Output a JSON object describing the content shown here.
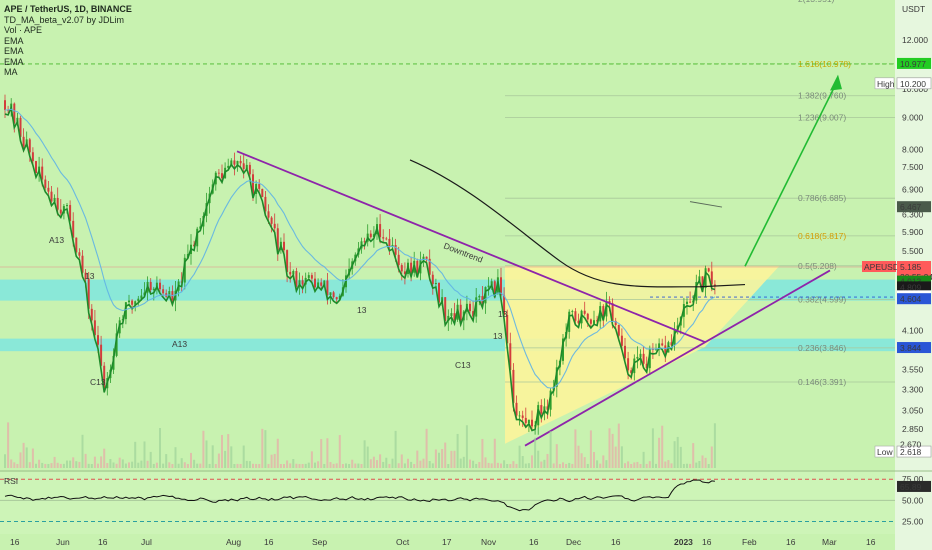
{
  "header": {
    "title": "APE / TetherUS, 1D, BINANCE",
    "indicators": [
      "TD_MA_beta_v2.07 by JDLim",
      "Vol · APE",
      "EMA",
      "EMA",
      "EMA",
      "MA"
    ]
  },
  "colors": {
    "background": "#c8f2b0",
    "candle_up": "#2e9e2e",
    "candle_down": "#d23c3c",
    "trendline": "#8e24aa",
    "projection": "#22bb33",
    "zone": "#7fe6df",
    "triangle": "#fff59a",
    "ma_black": "#1a1a1a",
    "ema_blue": "#5fb3e6",
    "td_green": "#1d8a2a",
    "dashed_red": "#e05050"
  },
  "chart_data": {
    "type": "candlestick",
    "title": "APE / TetherUS, 1D, BINANCE",
    "y_axis": {
      "unit": "USDT",
      "scale": "log",
      "range": [
        2.45,
        13.9
      ],
      "ticks": [
        "12.000",
        "11.000",
        "10.000",
        "9.000",
        "8.000",
        "7.500",
        "6.900",
        "6.300",
        "5.900",
        "5.500",
        "4.100",
        "3.550",
        "3.300",
        "3.050",
        "2.850"
      ]
    },
    "x_axis": {
      "ticks": [
        "16",
        "Jun",
        "16",
        "Jul",
        "Aug",
        "16",
        "Sep",
        "Oct",
        "17",
        "Nov",
        "16",
        "Dec",
        "16",
        "2023",
        "16",
        "Feb",
        "16",
        "Mar",
        "16"
      ]
    },
    "price_labels": [
      {
        "text": "USDT",
        "value": 13.4
      },
      {
        "text": "10.977",
        "value": 10.977,
        "bg": "#22cc22"
      },
      {
        "text": "High",
        "value": 10.2,
        "outline": true
      },
      {
        "text": "10.200",
        "value": 10.2,
        "outline": true
      },
      {
        "text": "6.467",
        "value": 6.467,
        "bg": "#4a5a4a"
      },
      {
        "text": "APEUSDT",
        "value": 5.185,
        "bg": "#ff5a5a"
      },
      {
        "text": "5.185",
        "value": 5.185,
        "bg": "#ff5a5a"
      },
      {
        "text": "20:55:24",
        "value": 5.02,
        "bg": "#ff5a5a"
      },
      {
        "text": "4.913",
        "value": 4.913,
        "bg": "#1a8a1a"
      },
      {
        "text": "4.809",
        "value": 4.809,
        "bg": "#1a1a1a"
      },
      {
        "text": "4.653",
        "value": 4.653,
        "bg": "#ffffff"
      },
      {
        "text": "4.604",
        "value": 4.604,
        "bg": "#2a56d6"
      },
      {
        "text": "3.844",
        "value": 3.844,
        "bg": "#2a56d6"
      },
      {
        "text": "Low",
        "value": 2.618,
        "outline": true
      },
      {
        "text": "2.618",
        "value": 2.618,
        "outline": true
      },
      {
        "text": "2.670",
        "value": 2.67,
        "small": true
      }
    ],
    "fib_levels": [
      {
        "ratio": "2",
        "label": "2(13.951)",
        "value": 13.951
      },
      {
        "ratio": "1.618",
        "label": "1.618(10.978)",
        "value": 10.978
      },
      {
        "ratio": "1.382",
        "label": "1.382(9.760)",
        "value": 9.76
      },
      {
        "ratio": "1.236",
        "label": "1.236(9.007)",
        "value": 9.007
      },
      {
        "ratio": "0.786",
        "label": "0.786(6.685)",
        "value": 6.685
      },
      {
        "ratio": "0.618",
        "label": "0.618(5.817)",
        "value": 5.817
      },
      {
        "ratio": "0.5",
        "label": "0.5(5.208)",
        "value": 5.208
      },
      {
        "ratio": "0.382",
        "label": "0.382(4.599)",
        "value": 4.599
      },
      {
        "ratio": "0.236",
        "label": "0.236(3.846)",
        "value": 3.846
      },
      {
        "ratio": "0.146",
        "label": "0.146(3.391)",
        "value": 3.391
      }
    ],
    "annotations": [
      {
        "text": "Downtrend"
      },
      {
        "text": "A13"
      },
      {
        "text": "13"
      },
      {
        "text": "C13"
      },
      {
        "text": "A13"
      },
      {
        "text": "13"
      },
      {
        "text": "C13"
      },
      {
        "text": "13"
      },
      {
        "text": "13"
      }
    ],
    "rsi": {
      "label": "RSI",
      "value": 65.89,
      "levels": [
        75,
        50,
        25
      ],
      "ticks": [
        "75.00",
        "50.00",
        "25.00"
      ]
    }
  }
}
